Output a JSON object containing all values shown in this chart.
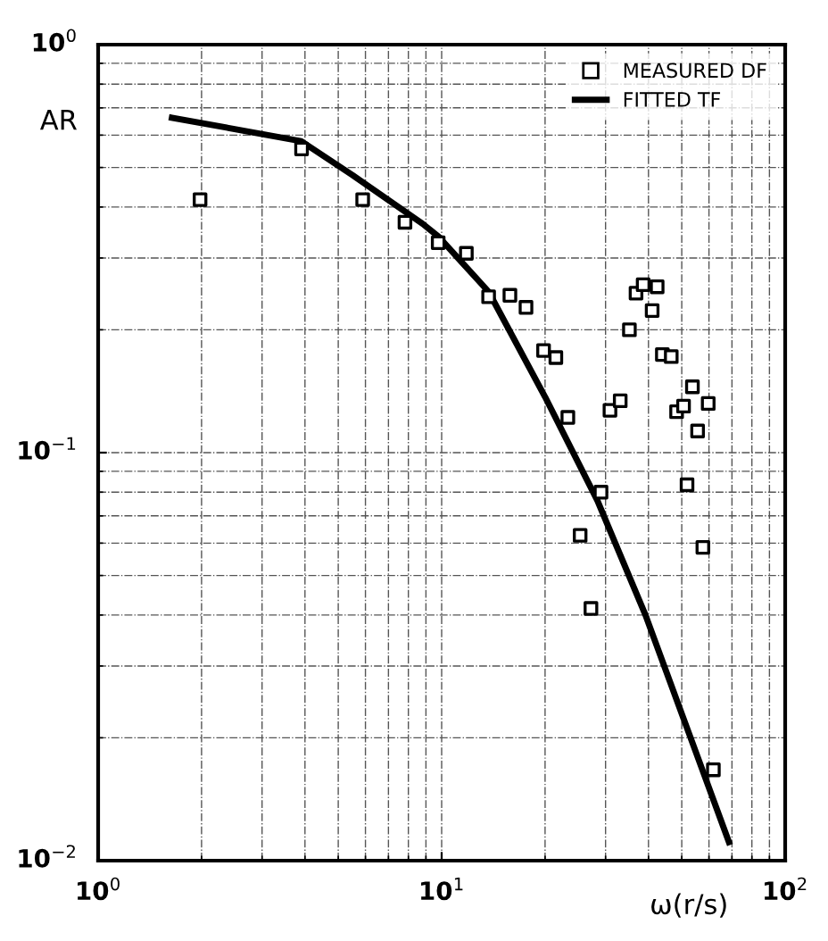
{
  "chart_data": {
    "type": "scatter",
    "xlabel": "ω(r/s)",
    "ylabel": "AR",
    "log": "xy",
    "grid": true,
    "legend": "top right",
    "xlim": [
      1,
      100
    ],
    "ylim": [
      0.01,
      1
    ],
    "xticks": [
      {
        "value": 1,
        "label": "10$^{0}$"
      },
      {
        "value": 10,
        "label": "10$^{1}$"
      },
      {
        "value": 100,
        "label": "10$^{2}$"
      }
    ],
    "yticks": [
      {
        "value": 0.01,
        "label": "10$^{−2}$"
      },
      {
        "value": 0.1,
        "label": "10$^{−1}$"
      },
      {
        "value": 1,
        "label": "10$^{0}$"
      }
    ],
    "series": [
      {
        "name": "MEASURED DF",
        "marker": "square",
        "color": "#000000",
        "x": [
          1.98,
          3.91,
          5.89,
          7.82,
          9.77,
          11.8,
          13.7,
          15.8,
          17.6,
          19.8,
          21.5,
          23.3,
          29.1,
          25.3,
          27.2,
          30.9,
          33.1,
          35.2,
          36.8,
          38.6,
          42.4,
          41.0,
          43.9,
          46.6,
          48.3,
          50.6,
          53.7,
          55.6,
          59.7,
          51.8,
          57.6,
          61.8
        ],
        "values": [
          0.417,
          0.555,
          0.417,
          0.367,
          0.327,
          0.308,
          0.241,
          0.243,
          0.227,
          0.178,
          0.171,
          0.122,
          0.08,
          0.0627,
          0.0415,
          0.127,
          0.134,
          0.2,
          0.246,
          0.258,
          0.255,
          0.223,
          0.174,
          0.172,
          0.126,
          0.13,
          0.145,
          0.113,
          0.132,
          0.0834,
          0.0586,
          0.0167
        ]
      },
      {
        "name": "FITTED TF",
        "type": "line",
        "marker": "none",
        "line_style": "solid",
        "color": "#000000",
        "x": [
          1.64,
          3.9,
          5.5,
          8.8,
          9.77,
          13.7,
          20.0,
          28.4,
          39.2,
          68.6
        ],
        "values": [
          0.662,
          0.58,
          0.479,
          0.364,
          0.339,
          0.248,
          0.137,
          0.0763,
          0.04,
          0.0111
        ]
      }
    ]
  }
}
